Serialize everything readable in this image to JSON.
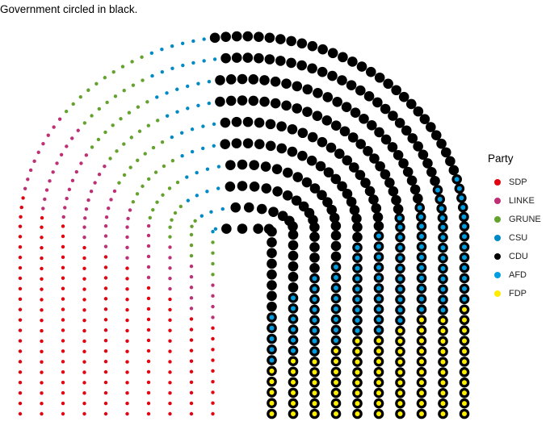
{
  "chart_data": {
    "type": "parliament",
    "title": "Government circled in black.",
    "legend_title": "Party",
    "rows": 10,
    "series": [
      {
        "name": "SDP",
        "color": "#E3000F",
        "seats": 153,
        "government": false
      },
      {
        "name": "LINKE",
        "color": "#BE3075",
        "seats": 69,
        "government": false
      },
      {
        "name": "GRUNE",
        "color": "#64A12D",
        "seats": 67,
        "government": false
      },
      {
        "name": "CSU",
        "color": "#008AC5",
        "seats": 46,
        "government": false
      },
      {
        "name": "CDU",
        "color": "#000000",
        "seats": 200,
        "government": true
      },
      {
        "name": "AFD",
        "color": "#009EE0",
        "seats": 94,
        "government": true
      },
      {
        "name": "FDP",
        "color": "#FFED00",
        "seats": 80,
        "government": true
      }
    ],
    "legend_position": "right"
  }
}
